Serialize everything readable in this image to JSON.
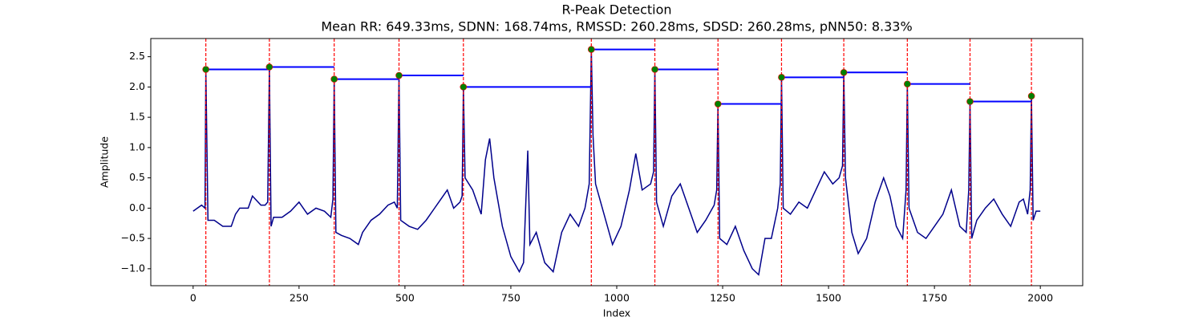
{
  "chart_data": {
    "type": "line",
    "title": "R-Peak Detection",
    "subtitle": "Mean RR: 649.33ms, SDNN: 168.74ms, RMSSD: 260.28ms, SDSD: 260.28ms, pNN50: 8.33%",
    "x_label": "Index",
    "y_label": "Amplitude",
    "xlim": [
      -100,
      2100
    ],
    "ylim": [
      -1.28,
      2.8
    ],
    "xticks": [
      0,
      250,
      500,
      750,
      1000,
      1250,
      1500,
      1750,
      2000
    ],
    "yticks": [
      {
        "value": -1.0,
        "label": "−1.0"
      },
      {
        "value": -0.5,
        "label": "−0.5"
      },
      {
        "value": 0.0,
        "label": "0.0"
      },
      0.5,
      {
        "value": 1.0,
        "label": "1.0"
      },
      1.5,
      {
        "value": 2.0,
        "label": "2.0"
      },
      2.5
    ],
    "signal": {
      "color": "#00008b",
      "x": [
        0,
        20,
        28,
        30,
        35,
        50,
        70,
        90,
        100,
        110,
        130,
        140,
        160,
        170,
        176,
        180,
        184,
        190,
        210,
        230,
        250,
        270,
        290,
        310,
        325,
        330,
        333,
        337,
        350,
        370,
        390,
        400,
        420,
        440,
        460,
        475,
        482,
        486,
        490,
        510,
        530,
        550,
        570,
        590,
        600,
        615,
        630,
        635,
        638,
        642,
        660,
        680,
        690,
        700,
        710,
        730,
        750,
        770,
        780,
        790,
        795,
        810,
        830,
        850,
        870,
        890,
        910,
        925,
        935,
        940,
        944,
        950,
        970,
        990,
        1010,
        1030,
        1045,
        1060,
        1080,
        1087,
        1090,
        1094,
        1110,
        1130,
        1150,
        1170,
        1190,
        1210,
        1230,
        1236,
        1239,
        1243,
        1260,
        1280,
        1300,
        1320,
        1335,
        1350,
        1365,
        1380,
        1386,
        1389,
        1393,
        1410,
        1430,
        1450,
        1470,
        1490,
        1510,
        1525,
        1533,
        1536,
        1540,
        1555,
        1570,
        1590,
        1610,
        1630,
        1645,
        1660,
        1675,
        1683,
        1686,
        1690,
        1710,
        1730,
        1750,
        1770,
        1790,
        1810,
        1825,
        1831,
        1834,
        1838,
        1850,
        1870,
        1890,
        1910,
        1930,
        1950,
        1960,
        1970,
        1976,
        1979,
        1983,
        1990,
        2000
      ],
      "values": [
        -0.05,
        0.05,
        0.0,
        2.29,
        -0.2,
        -0.2,
        -0.3,
        -0.3,
        -0.1,
        0.0,
        0.0,
        0.2,
        0.05,
        0.05,
        0.1,
        2.33,
        -0.3,
        -0.15,
        -0.15,
        -0.05,
        0.1,
        -0.1,
        0.0,
        -0.05,
        -0.15,
        0.15,
        2.13,
        -0.4,
        -0.45,
        -0.5,
        -0.6,
        -0.4,
        -0.2,
        -0.1,
        0.05,
        0.1,
        0.0,
        2.19,
        -0.2,
        -0.3,
        -0.35,
        -0.2,
        0.0,
        0.2,
        0.3,
        0.0,
        0.1,
        0.2,
        2.0,
        0.5,
        0.3,
        -0.1,
        0.8,
        1.15,
        0.5,
        -0.3,
        -0.8,
        -1.05,
        -0.9,
        0.95,
        -0.6,
        -0.4,
        -0.9,
        -1.05,
        -0.4,
        -0.1,
        -0.3,
        0.0,
        0.4,
        2.62,
        1.2,
        0.4,
        -0.1,
        -0.6,
        -0.3,
        0.3,
        0.9,
        0.3,
        0.4,
        0.6,
        2.29,
        0.1,
        -0.3,
        0.2,
        0.4,
        0.0,
        -0.4,
        -0.2,
        0.05,
        0.3,
        1.72,
        -0.5,
        -0.6,
        -0.3,
        -0.7,
        -1.0,
        -1.1,
        -0.5,
        -0.5,
        0.0,
        0.4,
        2.16,
        0.0,
        -0.1,
        0.1,
        0.0,
        0.3,
        0.6,
        0.4,
        0.5,
        0.7,
        2.24,
        0.5,
        -0.4,
        -0.75,
        -0.5,
        0.1,
        0.5,
        0.2,
        -0.3,
        -0.5,
        0.3,
        2.05,
        0.0,
        -0.4,
        -0.5,
        -0.3,
        -0.1,
        0.3,
        -0.3,
        -0.4,
        0.3,
        1.76,
        -0.5,
        -0.2,
        0.0,
        0.15,
        -0.1,
        -0.3,
        0.1,
        0.15,
        -0.1,
        0.3,
        1.85,
        -0.2,
        -0.05,
        -0.05
      ]
    },
    "peaks": {
      "color": "green",
      "edge_color": "red",
      "line_color": "red",
      "interval_color": "blue",
      "x": [
        30,
        180,
        333,
        486,
        638,
        940,
        1090,
        1239,
        1389,
        1536,
        1686,
        1834,
        1979
      ],
      "values": [
        2.29,
        2.33,
        2.13,
        2.19,
        2.0,
        2.62,
        2.29,
        1.72,
        2.16,
        2.24,
        2.05,
        1.76,
        1.85
      ]
    }
  }
}
